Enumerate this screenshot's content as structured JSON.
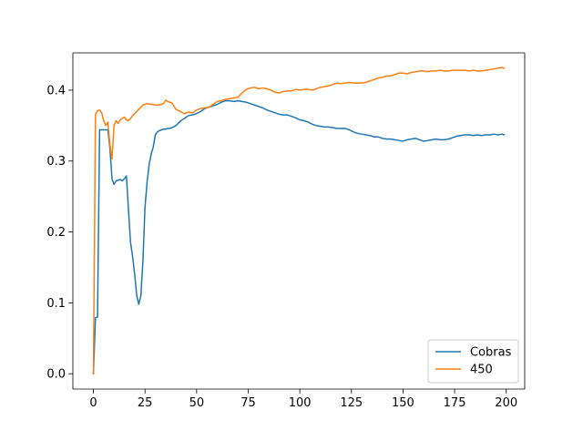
{
  "chart_data": {
    "type": "line",
    "title": "",
    "xlabel": "",
    "ylabel": "",
    "xlim": [
      -9.95,
      208.95
    ],
    "ylim": [
      -0.0216,
      0.4526
    ],
    "xticks": [
      0,
      25,
      50,
      75,
      100,
      125,
      150,
      175,
      200
    ],
    "yticks": [
      0.0,
      0.1,
      0.2,
      0.3,
      0.4
    ],
    "xtick_labels": [
      "0",
      "25",
      "50",
      "75",
      "100",
      "125",
      "150",
      "175",
      "200"
    ],
    "ytick_labels": [
      "0.0",
      "0.1",
      "0.2",
      "0.3",
      "0.4"
    ],
    "grid": false,
    "legend_position": "lower-right",
    "series": [
      {
        "name": "Cobras",
        "color": "#1f77b4",
        "x": [
          0,
          1,
          2,
          3,
          4,
          5,
          6,
          7,
          8,
          9,
          10,
          11,
          12,
          13,
          14,
          15,
          16,
          17,
          18,
          19,
          20,
          21,
          22,
          23,
          24,
          25,
          26,
          27,
          28,
          29,
          30,
          31,
          32,
          33,
          34,
          35,
          36,
          37,
          38,
          40,
          42,
          44,
          46,
          48,
          50,
          52,
          54,
          56,
          58,
          60,
          62,
          64,
          66,
          68,
          70,
          72,
          74,
          76,
          78,
          80,
          82,
          84,
          86,
          88,
          90,
          92,
          94,
          96,
          98,
          100,
          102,
          104,
          106,
          108,
          110,
          112,
          114,
          116,
          118,
          120,
          122,
          124,
          126,
          128,
          130,
          132,
          134,
          136,
          138,
          140,
          142,
          144,
          146,
          148,
          150,
          152,
          154,
          156,
          158,
          160,
          162,
          164,
          166,
          168,
          170,
          172,
          174,
          176,
          178,
          180,
          182,
          184,
          186,
          188,
          190,
          192,
          194,
          196,
          198,
          199
        ],
        "y": [
          0.0,
          0.079,
          0.08,
          0.344,
          0.344,
          0.344,
          0.344,
          0.344,
          0.318,
          0.275,
          0.267,
          0.272,
          0.273,
          0.274,
          0.272,
          0.275,
          0.279,
          0.23,
          0.185,
          0.165,
          0.14,
          0.11,
          0.098,
          0.11,
          0.16,
          0.235,
          0.27,
          0.295,
          0.31,
          0.32,
          0.337,
          0.341,
          0.343,
          0.344,
          0.345,
          0.345,
          0.346,
          0.346,
          0.347,
          0.35,
          0.356,
          0.36,
          0.364,
          0.365,
          0.367,
          0.37,
          0.374,
          0.376,
          0.378,
          0.38,
          0.383,
          0.385,
          0.385,
          0.384,
          0.385,
          0.384,
          0.383,
          0.381,
          0.379,
          0.377,
          0.375,
          0.372,
          0.37,
          0.368,
          0.366,
          0.365,
          0.365,
          0.363,
          0.361,
          0.358,
          0.357,
          0.355,
          0.352,
          0.35,
          0.349,
          0.348,
          0.348,
          0.347,
          0.346,
          0.346,
          0.346,
          0.344,
          0.341,
          0.339,
          0.338,
          0.337,
          0.336,
          0.334,
          0.334,
          0.332,
          0.331,
          0.331,
          0.33,
          0.329,
          0.328,
          0.33,
          0.331,
          0.332,
          0.33,
          0.328,
          0.329,
          0.33,
          0.331,
          0.33,
          0.33,
          0.331,
          0.333,
          0.335,
          0.336,
          0.337,
          0.337,
          0.336,
          0.337,
          0.336,
          0.337,
          0.337,
          0.338,
          0.337,
          0.338,
          0.337
        ]
      },
      {
        "name": "450",
        "color": "#ff7f0e",
        "x": [
          0,
          1,
          2,
          3,
          4,
          5,
          6,
          7,
          8,
          9,
          10,
          11,
          12,
          13,
          14,
          15,
          16,
          17,
          18,
          19,
          20,
          22,
          24,
          26,
          28,
          30,
          32,
          34,
          35,
          36,
          38,
          40,
          42,
          44,
          46,
          48,
          50,
          52,
          54,
          56,
          58,
          60,
          62,
          64,
          66,
          68,
          70,
          72,
          74,
          76,
          78,
          80,
          82,
          84,
          86,
          88,
          90,
          92,
          94,
          96,
          98,
          100,
          102,
          104,
          106,
          108,
          110,
          112,
          114,
          116,
          118,
          120,
          122,
          124,
          126,
          128,
          130,
          132,
          134,
          136,
          138,
          140,
          142,
          144,
          146,
          148,
          150,
          152,
          154,
          156,
          158,
          160,
          162,
          164,
          166,
          168,
          170,
          172,
          174,
          176,
          178,
          180,
          182,
          184,
          186,
          188,
          190,
          192,
          194,
          196,
          198,
          199
        ],
        "y": [
          0.0,
          0.366,
          0.371,
          0.372,
          0.368,
          0.357,
          0.35,
          0.355,
          0.323,
          0.303,
          0.35,
          0.357,
          0.353,
          0.358,
          0.36,
          0.362,
          0.358,
          0.357,
          0.36,
          0.364,
          0.367,
          0.373,
          0.379,
          0.381,
          0.38,
          0.379,
          0.379,
          0.381,
          0.386,
          0.384,
          0.382,
          0.373,
          0.37,
          0.367,
          0.369,
          0.368,
          0.372,
          0.374,
          0.375,
          0.376,
          0.38,
          0.384,
          0.385,
          0.387,
          0.388,
          0.389,
          0.39,
          0.396,
          0.401,
          0.403,
          0.404,
          0.402,
          0.403,
          0.402,
          0.4,
          0.397,
          0.396,
          0.398,
          0.399,
          0.399,
          0.401,
          0.4,
          0.401,
          0.401,
          0.4,
          0.402,
          0.404,
          0.405,
          0.406,
          0.408,
          0.41,
          0.409,
          0.41,
          0.411,
          0.41,
          0.41,
          0.41,
          0.411,
          0.413,
          0.415,
          0.417,
          0.418,
          0.42,
          0.42,
          0.422,
          0.424,
          0.424,
          0.423,
          0.425,
          0.426,
          0.427,
          0.427,
          0.426,
          0.427,
          0.427,
          0.428,
          0.427,
          0.427,
          0.428,
          0.428,
          0.428,
          0.428,
          0.427,
          0.428,
          0.427,
          0.427,
          0.428,
          0.429,
          0.43,
          0.431,
          0.432,
          0.431
        ]
      }
    ]
  }
}
